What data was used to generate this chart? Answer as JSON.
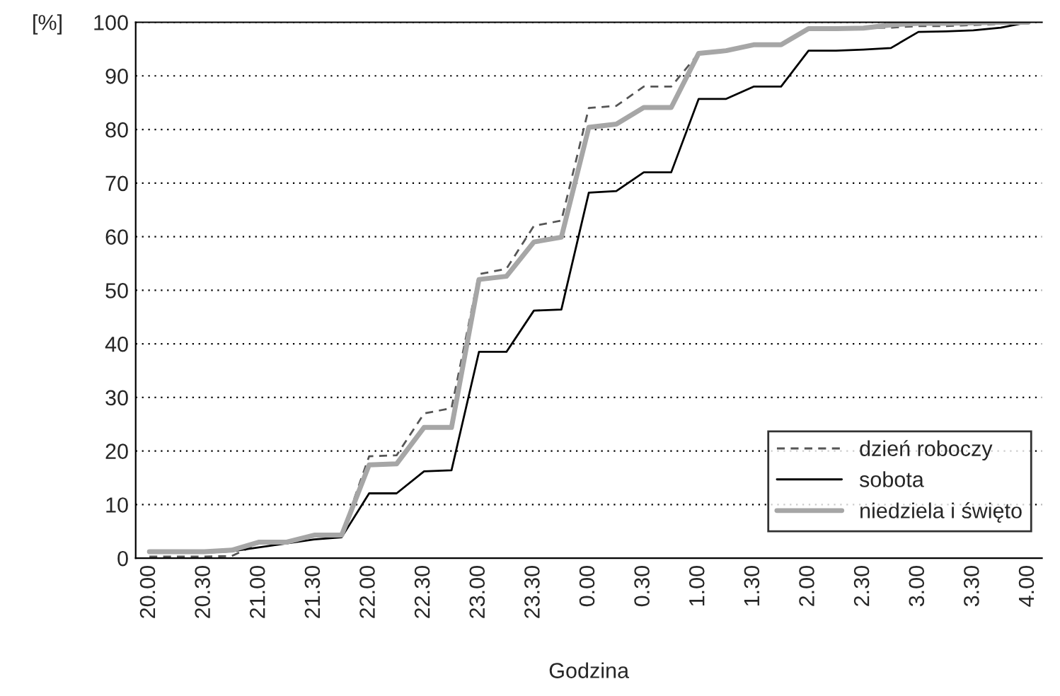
{
  "chart_data": {
    "type": "line",
    "ylabel": "[%]",
    "xlabel": "Godzina",
    "categories": [
      "20.00",
      null,
      "20.30",
      null,
      "21.00",
      null,
      "21.30",
      null,
      "22.00",
      null,
      "22.30",
      null,
      "23.00",
      null,
      "23.30",
      null,
      "0.00",
      null,
      "0.30",
      null,
      "1.00",
      null,
      "1.30",
      null,
      "2.00",
      null,
      "2.30",
      null,
      "3.00",
      null,
      "3.30",
      null,
      "4.00"
    ],
    "series": [
      {
        "name": "dzień roboczy",
        "color": "#555555",
        "line_style": "dashed",
        "values": [
          0.3,
          0.3,
          0.3,
          0.4,
          2.8,
          3,
          4.2,
          4.4,
          19,
          19.2,
          27,
          28,
          53,
          54,
          62,
          63,
          84,
          84.4,
          88,
          88,
          94.2,
          94.7,
          95.8,
          95.8,
          98.8,
          98.8,
          98.9,
          99,
          99.3,
          99.3,
          99.5,
          99.7,
          100
        ]
      },
      {
        "name": "sobota",
        "color": "#000000",
        "line_style": "solid",
        "values": [
          1,
          1,
          1,
          1.3,
          null,
          null,
          3.5,
          3.9,
          12.1,
          12.1,
          16.2,
          16.4,
          38.5,
          38.5,
          46.2,
          46.4,
          68.2,
          68.5,
          72,
          72,
          85.7,
          85.7,
          88,
          88,
          94.7,
          94.7,
          94.9,
          95.2,
          98.2,
          98.3,
          98.5,
          99,
          100
        ]
      },
      {
        "name": "niedziela i święto",
        "color": "#a6a6a6",
        "line_style": "solid",
        "values": [
          1.2,
          1.2,
          1.2,
          1.5,
          3,
          3,
          4.3,
          4.3,
          17.4,
          17.6,
          24.4,
          24.4,
          52,
          52.6,
          59,
          59.9,
          80.4,
          81,
          84.1,
          84.1,
          94.2,
          94.7,
          95.8,
          95.8,
          98.8,
          98.8,
          98.9,
          99.5,
          99.8,
          99.8,
          99.9,
          100,
          100
        ]
      }
    ],
    "ylim": [
      0,
      100
    ],
    "yticks": [
      0,
      10,
      20,
      30,
      40,
      50,
      60,
      70,
      80,
      90,
      100
    ],
    "grid": "y",
    "legend": "bottom right"
  }
}
